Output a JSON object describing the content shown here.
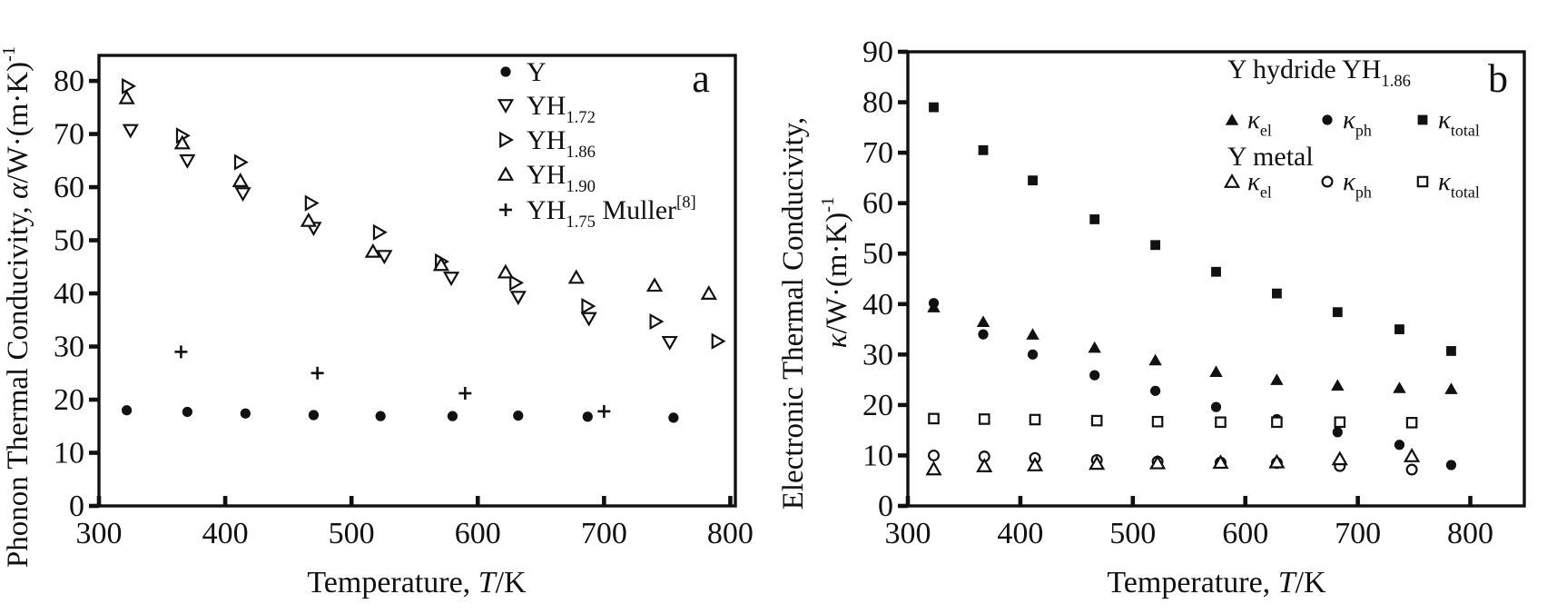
{
  "figure": {
    "description": "Two-panel scatter figure of thermal conductivity of yttrium and yttrium hydrides versus temperature"
  },
  "chart_data": [
    {
      "id": "a",
      "type": "scatter",
      "panel_label": "a",
      "x_axis": {
        "label": "Temperature, *T*/K",
        "min": 300,
        "max": 804,
        "ticks": [
          300,
          400,
          500,
          600,
          700,
          800
        ]
      },
      "y_axis": {
        "label_lines": [
          "Phonon Thermal Conducivity, *α*/W·(m·K)^{-1}"
        ],
        "min": 0,
        "max": 84.8,
        "ticks": [
          0,
          10,
          20,
          30,
          40,
          50,
          60,
          70,
          80
        ]
      },
      "legend": {
        "type": "simple",
        "items": [
          {
            "marker": "circle-filled",
            "label": "Y"
          },
          {
            "marker": "triangle-down-open",
            "label": "YH_{1.72}"
          },
          {
            "marker": "triangle-right-open",
            "label": "YH_{1.86}"
          },
          {
            "marker": "triangle-up-open",
            "label": "YH_{1.90}"
          },
          {
            "marker": "plus",
            "label": "YH_{1.75} Muller^{[8]}"
          }
        ]
      },
      "series": [
        {
          "name": "Y",
          "marker": "circle-filled",
          "x": [
            322,
            370,
            416,
            470,
            523,
            580,
            632,
            687,
            755
          ],
          "y": [
            18.0,
            17.7,
            17.4,
            17.1,
            16.9,
            16.9,
            17.0,
            16.8,
            16.6
          ]
        },
        {
          "name": "YH_{1.72}",
          "marker": "triangle-down-open",
          "x": [
            325,
            370,
            414,
            470,
            526,
            579,
            632,
            688,
            752
          ],
          "y": [
            70.7,
            65.0,
            58.8,
            52.3,
            47.0,
            42.9,
            39.3,
            35.3,
            30.8
          ]
        },
        {
          "name": "YH_{1.86}",
          "marker": "triangle-right-open",
          "x": [
            323,
            366,
            412,
            468,
            522,
            571,
            630,
            687,
            741,
            790
          ],
          "y": [
            79.0,
            69.7,
            64.7,
            57.0,
            51.5,
            46.0,
            42.0,
            37.6,
            34.7,
            31.0
          ]
        },
        {
          "name": "YH_{1.90}",
          "marker": "triangle-up-open",
          "x": [
            322,
            366,
            412,
            466,
            517,
            571,
            622,
            678,
            740,
            783
          ],
          "y": [
            76.8,
            68.3,
            61.2,
            53.7,
            47.9,
            45.4,
            44.0,
            43.0,
            41.5,
            40.0
          ]
        },
        {
          "name": "YH_{1.75} Muller^{[8]}",
          "marker": "plus",
          "x": [
            365,
            473,
            590,
            700
          ],
          "y": [
            29.0,
            25.0,
            21.2,
            17.8
          ]
        }
      ]
    },
    {
      "id": "b",
      "type": "scatter",
      "panel_label": "b",
      "x_axis": {
        "label": "Temperature, *T*/K",
        "min": 300,
        "max": 848,
        "ticks": [
          300,
          400,
          500,
          600,
          700,
          800
        ]
      },
      "y_axis": {
        "label_lines": [
          "Electronic Thermal Conducivity,",
          "*κ*/W·(m·K)^{-1}"
        ],
        "min": 0,
        "max": 90,
        "ticks": [
          0,
          10,
          20,
          30,
          40,
          50,
          60,
          70,
          80,
          90
        ]
      },
      "legend": {
        "type": "grouped",
        "groups": [
          {
            "title": "Y hydride YH_{1.86}",
            "items": [
              {
                "marker": "triangle-up-filled",
                "label": "*κ*_{el}"
              },
              {
                "marker": "circle-filled",
                "label": "*κ*_{ph}"
              },
              {
                "marker": "square-filled",
                "label": "*κ*_{total}"
              }
            ]
          },
          {
            "title": "Y metal",
            "items": [
              {
                "marker": "triangle-up-open",
                "label": "*κ*_{el}"
              },
              {
                "marker": "circle-open",
                "label": "*κ*_{ph}"
              },
              {
                "marker": "square-open",
                "label": "*κ*_{total}"
              }
            ]
          }
        ]
      },
      "series": [
        {
          "name": "YH1.86 *κ*_{total}",
          "marker": "square-filled",
          "x": [
            323,
            367,
            411,
            466,
            520,
            574,
            628,
            682,
            737,
            783
          ],
          "y": [
            79.0,
            70.5,
            64.5,
            56.8,
            51.7,
            46.4,
            42.1,
            38.4,
            35.0,
            30.7
          ]
        },
        {
          "name": "YH1.86 *κ*_{el}",
          "marker": "triangle-up-filled",
          "x": [
            323,
            367,
            411,
            466,
            520,
            574,
            628,
            682,
            737,
            783
          ],
          "y": [
            39.4,
            36.5,
            34.0,
            31.4,
            28.9,
            26.6,
            25.0,
            23.9,
            23.4,
            23.2
          ]
        },
        {
          "name": "YH1.86 *κ*_{ph}",
          "marker": "circle-filled",
          "x": [
            323,
            367,
            411,
            466,
            520,
            574,
            628,
            682,
            737,
            783
          ],
          "y": [
            40.2,
            34.0,
            30.0,
            25.9,
            22.8,
            19.6,
            17.2,
            14.6,
            12.1,
            8.1
          ]
        },
        {
          "name": "Y metal *κ*_{total}",
          "marker": "square-open",
          "x": [
            323,
            368,
            413,
            468,
            522,
            578,
            628,
            684,
            748
          ],
          "y": [
            17.3,
            17.2,
            17.1,
            16.9,
            16.7,
            16.6,
            16.6,
            16.6,
            16.5
          ]
        },
        {
          "name": "Y metal *κ*_{ph}",
          "marker": "circle-open",
          "x": [
            323,
            368,
            413,
            468,
            522,
            578,
            628,
            684,
            748
          ],
          "y": [
            10.0,
            9.8,
            9.5,
            9.1,
            8.8,
            8.6,
            8.5,
            7.9,
            7.2
          ]
        },
        {
          "name": "Y metal *κ*_{el}",
          "marker": "triangle-up-open",
          "x": [
            323,
            368,
            413,
            468,
            522,
            578,
            628,
            684,
            748
          ],
          "y": [
            7.3,
            7.9,
            8.1,
            8.4,
            8.5,
            8.6,
            8.7,
            9.3,
            9.9
          ]
        }
      ]
    }
  ]
}
